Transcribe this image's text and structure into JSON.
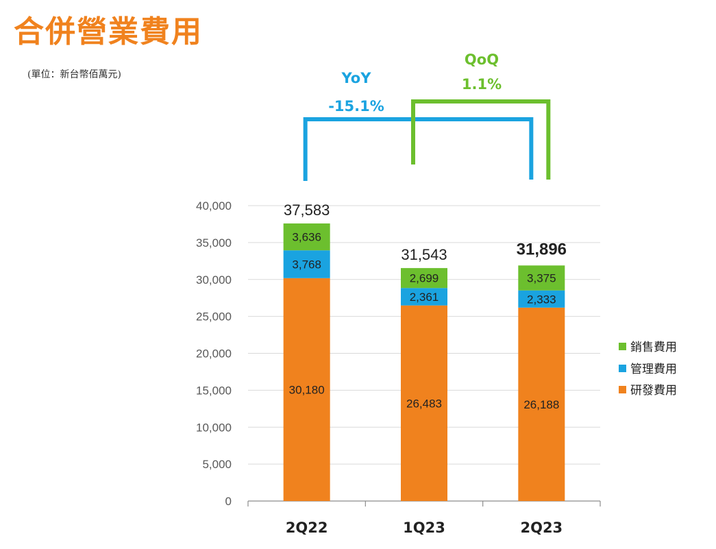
{
  "header": {
    "title": "合併營業費用",
    "unit": "(單位：新台幣佰萬元)"
  },
  "comparisons": {
    "yoy": {
      "label": "YoY",
      "value": "-15.1%",
      "color": "#1aa3e0"
    },
    "qoq": {
      "label": "QoQ",
      "value": "1.1%",
      "color": "#6cbf2e"
    }
  },
  "chart_data": {
    "type": "bar",
    "stacked": true,
    "categories": [
      "2Q22",
      "1Q23",
      "2Q23"
    ],
    "series": [
      {
        "name": "研發費用",
        "color": "#f0821e",
        "values": [
          30180,
          26483,
          26188
        ],
        "labels": [
          "30,180",
          "26,483",
          "26,188"
        ]
      },
      {
        "name": "管理費用",
        "color": "#1aa3e0",
        "values": [
          3768,
          2361,
          2333
        ],
        "labels": [
          "3,768",
          "2,361",
          "2,333"
        ]
      },
      {
        "name": "銷售費用",
        "color": "#6cbf2e",
        "values": [
          3636,
          2699,
          3375
        ],
        "labels": [
          "3,636",
          "2,699",
          "3,375"
        ]
      }
    ],
    "totals": [
      37583,
      31543,
      31896
    ],
    "total_labels": [
      "37,583",
      "31,543",
      "31,896"
    ],
    "ylim": [
      0,
      40000
    ],
    "yticks": [
      0,
      5000,
      10000,
      15000,
      20000,
      25000,
      30000,
      35000,
      40000
    ],
    "ytick_labels": [
      "0",
      "5,000",
      "10,000",
      "15,000",
      "20,000",
      "25,000",
      "30,000",
      "35,000",
      "40,000"
    ],
    "legend_order": [
      "銷售費用",
      "管理費用",
      "研發費用"
    ],
    "legend_position": "right",
    "grid": true
  }
}
